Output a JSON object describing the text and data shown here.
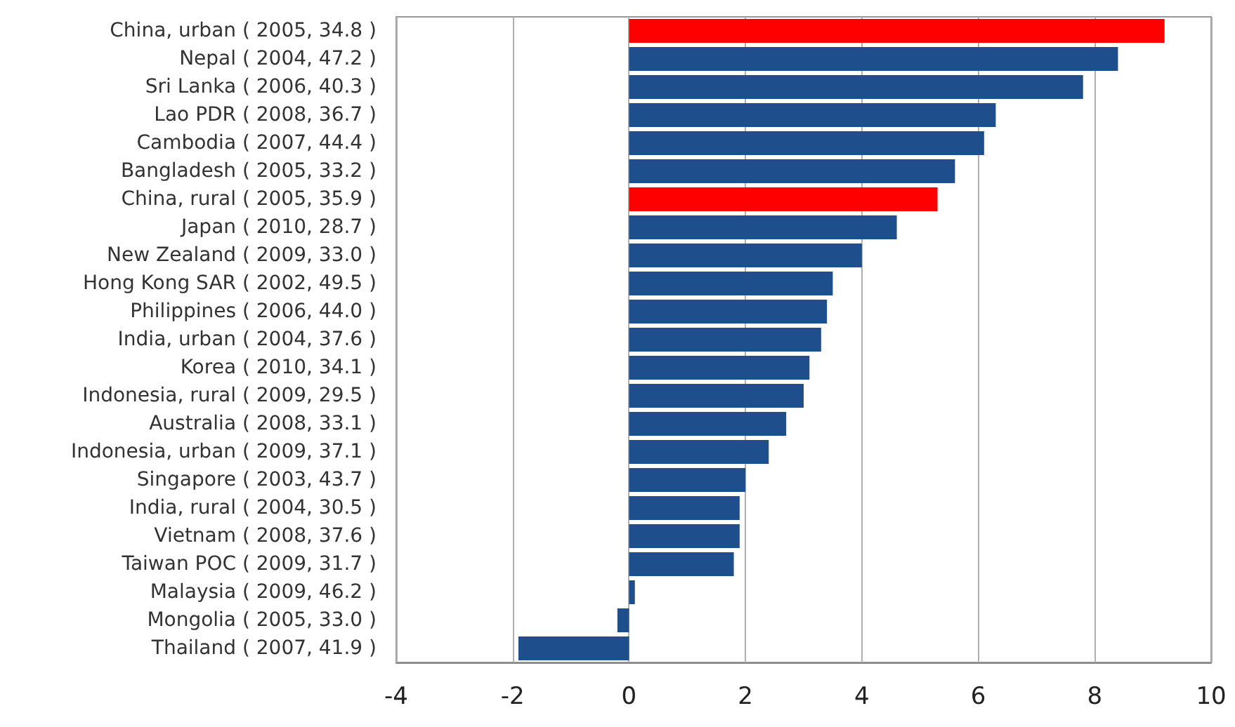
{
  "chart_data": {
    "type": "bar",
    "orientation": "horizontal",
    "categories": [
      "China, urban ( 2005, 34.8 )",
      "Nepal ( 2004, 47.2 )",
      "Sri Lanka ( 2006, 40.3 )",
      "Lao PDR ( 2008, 36.7 )",
      "Cambodia ( 2007, 44.4 )",
      "Bangladesh ( 2005, 33.2 )",
      "China, rural ( 2005, 35.9 )",
      "Japan ( 2010, 28.7 )",
      "New Zealand ( 2009, 33.0 )",
      "Hong Kong SAR ( 2002, 49.5 )",
      "Philippines ( 2006, 44.0 )",
      "India, urban ( 2004, 37.6 )",
      "Korea ( 2010, 34.1 )",
      "Indonesia, rural ( 2009, 29.5 )",
      "Australia ( 2008, 33.1 )",
      "Indonesia, urban ( 2009, 37.1 )",
      "Singapore ( 2003, 43.7 )",
      "India, rural ( 2004, 30.5 )",
      "Vietnam ( 2008, 37.6 )",
      "Taiwan POC ( 2009, 31.7 )",
      "Malaysia ( 2009, 46.2 )",
      "Mongolia ( 2005, 33.0 )",
      "Thailand ( 2007, 41.9 )"
    ],
    "values": [
      9.2,
      8.4,
      7.8,
      6.3,
      6.1,
      5.6,
      5.3,
      4.6,
      4.0,
      3.5,
      3.4,
      3.3,
      3.1,
      3.0,
      2.7,
      2.4,
      2.0,
      1.9,
      1.9,
      1.8,
      0.1,
      -0.2,
      -1.9
    ],
    "colors": [
      "#ff0000",
      "#1f4e8c",
      "#1f4e8c",
      "#1f4e8c",
      "#1f4e8c",
      "#1f4e8c",
      "#ff0000",
      "#1f4e8c",
      "#1f4e8c",
      "#1f4e8c",
      "#1f4e8c",
      "#1f4e8c",
      "#1f4e8c",
      "#1f4e8c",
      "#1f4e8c",
      "#1f4e8c",
      "#1f4e8c",
      "#1f4e8c",
      "#1f4e8c",
      "#1f4e8c",
      "#1f4e8c",
      "#1f4e8c",
      "#1f4e8c"
    ],
    "xlim": [
      -4,
      10
    ],
    "xticks": [
      -4,
      -2,
      0,
      2,
      4,
      6,
      8,
      10
    ],
    "grid": "x"
  }
}
